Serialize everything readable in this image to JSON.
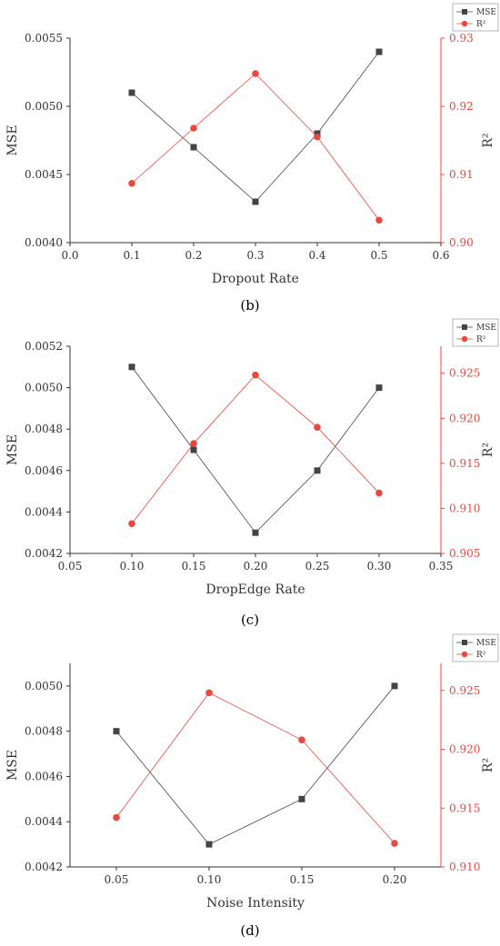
{
  "chart_data": [
    {
      "type": "line",
      "xlabel": "Dropout Rate",
      "ylabel": "MSE",
      "y2label": "R²",
      "x": [
        0.1,
        0.2,
        0.3,
        0.4,
        0.5
      ],
      "xlim": [
        0.0,
        0.6
      ],
      "xticks": [
        "0.0",
        "0.1",
        "0.2",
        "0.3",
        "0.4",
        "0.5",
        "0.6"
      ],
      "ylim": [
        0.004,
        0.0055
      ],
      "yticks": [
        "0.0040",
        "0.0045",
        "0.0050",
        "0.0055"
      ],
      "y2lim": [
        0.9,
        0.93
      ],
      "y2ticks": [
        "0.90",
        "0.91",
        "0.92",
        "0.93"
      ],
      "series": [
        {
          "name": "MSE",
          "axis": "left",
          "values": [
            0.0051,
            0.0047,
            0.0043,
            0.0048,
            0.0054
          ],
          "color": "#444444",
          "marker": "square"
        },
        {
          "name": "R²",
          "axis": "right",
          "values": [
            0.9087,
            0.9168,
            0.9248,
            0.9155,
            0.9033
          ],
          "color": "#e8483e",
          "marker": "circle"
        }
      ],
      "legend": "top-right",
      "caption": "(b)"
    },
    {
      "type": "line",
      "xlabel": "DropEdge Rate",
      "ylabel": "MSE",
      "y2label": "R²",
      "x": [
        0.1,
        0.15,
        0.2,
        0.25,
        0.3
      ],
      "xlim": [
        0.05,
        0.35
      ],
      "xticks": [
        "0.05",
        "0.10",
        "0.15",
        "0.20",
        "0.25",
        "0.30",
        "0.35"
      ],
      "ylim": [
        0.0042,
        0.0052
      ],
      "yticks": [
        "0.0042",
        "0.0044",
        "0.0046",
        "0.0048",
        "0.0050",
        "0.0052"
      ],
      "y2lim": [
        0.905,
        0.928
      ],
      "y2ticks": [
        "0.905",
        "0.910",
        "0.915",
        "0.920",
        "0.925"
      ],
      "series": [
        {
          "name": "MSE",
          "axis": "left",
          "values": [
            0.0051,
            0.0047,
            0.0043,
            0.0046,
            0.005
          ],
          "color": "#444444",
          "marker": "square"
        },
        {
          "name": "R²",
          "axis": "right",
          "values": [
            0.9083,
            0.9172,
            0.9248,
            0.919,
            0.9117
          ],
          "color": "#e8483e",
          "marker": "circle"
        }
      ],
      "legend": "top-right",
      "caption": "(c)"
    },
    {
      "type": "line",
      "xlabel": "Noise Intensity",
      "ylabel": "MSE",
      "y2label": "R²",
      "x": [
        0.05,
        0.1,
        0.15,
        0.2
      ],
      "xlim": [
        0.025,
        0.225
      ],
      "xticks": [
        "0.05",
        "0.10",
        "0.15",
        "0.20"
      ],
      "ylim": [
        0.0042,
        0.0051
      ],
      "yticks": [
        "0.0042",
        "0.0044",
        "0.0046",
        "0.0048",
        "0.0050"
      ],
      "y2lim": [
        0.91,
        0.9273
      ],
      "y2ticks": [
        "0.910",
        "0.915",
        "0.920",
        "0.925"
      ],
      "series": [
        {
          "name": "MSE",
          "axis": "left",
          "values": [
            0.0048,
            0.0043,
            0.0045,
            0.005
          ],
          "color": "#444444",
          "marker": "square"
        },
        {
          "name": "R²",
          "axis": "right",
          "values": [
            0.9142,
            0.9248,
            0.9208,
            0.912
          ],
          "color": "#e8483e",
          "marker": "circle"
        }
      ],
      "legend": "top-right",
      "caption": "(d)"
    }
  ]
}
